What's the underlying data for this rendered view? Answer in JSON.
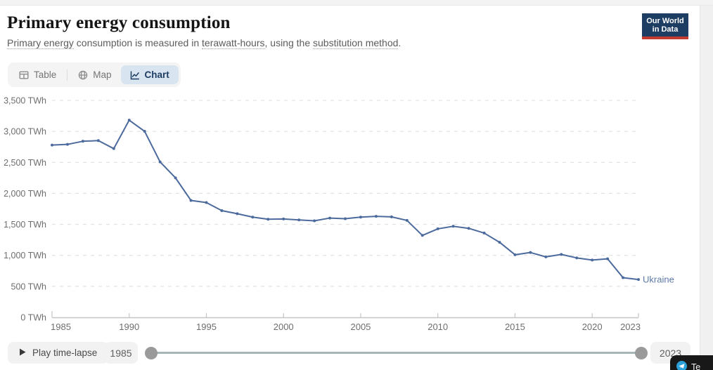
{
  "header": {
    "title": "Primary energy consumption",
    "subtitle_parts": [
      {
        "text": "Primary energy",
        "underline": true
      },
      {
        "text": " consumption is measured in ",
        "underline": false
      },
      {
        "text": "terawatt-hours",
        "underline": true
      },
      {
        "text": ", using the ",
        "underline": false
      },
      {
        "text": "substitution method",
        "underline": true
      },
      {
        "text": ".",
        "underline": false
      }
    ],
    "logo": {
      "line1": "Our World",
      "line2": "in Data",
      "bg_color": "#1d3d63",
      "bar_color": "#c43b32"
    }
  },
  "tabs": {
    "items": [
      {
        "label": "Table",
        "icon": "table-icon",
        "active": false
      },
      {
        "label": "Map",
        "icon": "globe-icon",
        "active": false
      },
      {
        "label": "Chart",
        "icon": "line-chart-icon",
        "active": true
      }
    ],
    "active_bg": "#d9e4f1",
    "active_color": "#1d3d63"
  },
  "chart_data": {
    "type": "line",
    "title": "Primary energy consumption",
    "unit": "TWh",
    "entity": "Ukraine",
    "xlim": [
      1985,
      2023
    ],
    "ylim": [
      0,
      3500
    ],
    "grid": "horizontal-dashed",
    "legend_position": "end-of-line",
    "line_color": "#4c6a9c",
    "label_color": "#5d7aa6",
    "axis_text_color": "#6e6e6e",
    "x": [
      1985,
      1986,
      1987,
      1988,
      1989,
      1990,
      1991,
      1992,
      1993,
      1994,
      1995,
      1996,
      1997,
      1998,
      1999,
      2000,
      2001,
      2002,
      2003,
      2004,
      2005,
      2006,
      2007,
      2008,
      2009,
      2010,
      2011,
      2012,
      2013,
      2014,
      2015,
      2016,
      2017,
      2018,
      2019,
      2020,
      2021,
      2022,
      2023
    ],
    "series": [
      {
        "name": "Ukraine",
        "color": "#4c6a9c",
        "values": [
          2779,
          2790,
          2841,
          2851,
          2722,
          3181,
          3001,
          2508,
          2250,
          1886,
          1852,
          1722,
          1672,
          1617,
          1583,
          1587,
          1572,
          1557,
          1602,
          1591,
          1617,
          1629,
          1621,
          1564,
          1322,
          1428,
          1469,
          1436,
          1360,
          1211,
          1010,
          1046,
          975,
          1015,
          959,
          925,
          944,
          640,
          610
        ]
      }
    ],
    "y_ticks": [
      {
        "value": 0,
        "label": "0 TWh"
      },
      {
        "value": 500,
        "label": "500 TWh"
      },
      {
        "value": 1000,
        "label": "1,000 TWh"
      },
      {
        "value": 1500,
        "label": "1,500 TWh"
      },
      {
        "value": 2000,
        "label": "2,000 TWh"
      },
      {
        "value": 2500,
        "label": "2,500 TWh"
      },
      {
        "value": 3000,
        "label": "3,000 TWh"
      },
      {
        "value": 3500,
        "label": "3,500 TWh"
      }
    ],
    "x_ticks": [
      {
        "year": 1985,
        "label": "1985"
      },
      {
        "year": 1990,
        "label": "1990"
      },
      {
        "year": 1995,
        "label": "1995"
      },
      {
        "year": 2000,
        "label": "2000"
      },
      {
        "year": 2005,
        "label": "2005"
      },
      {
        "year": 2010,
        "label": "2010"
      },
      {
        "year": 2015,
        "label": "2015"
      },
      {
        "year": 2020,
        "label": "2020"
      },
      {
        "year": 2023,
        "label": "2023"
      }
    ]
  },
  "timeline": {
    "play_label": "Play time-lapse",
    "start_year": "1985",
    "end_year": "2023"
  },
  "overlay": {
    "label": "Te",
    "icon": "telegram-icon"
  }
}
